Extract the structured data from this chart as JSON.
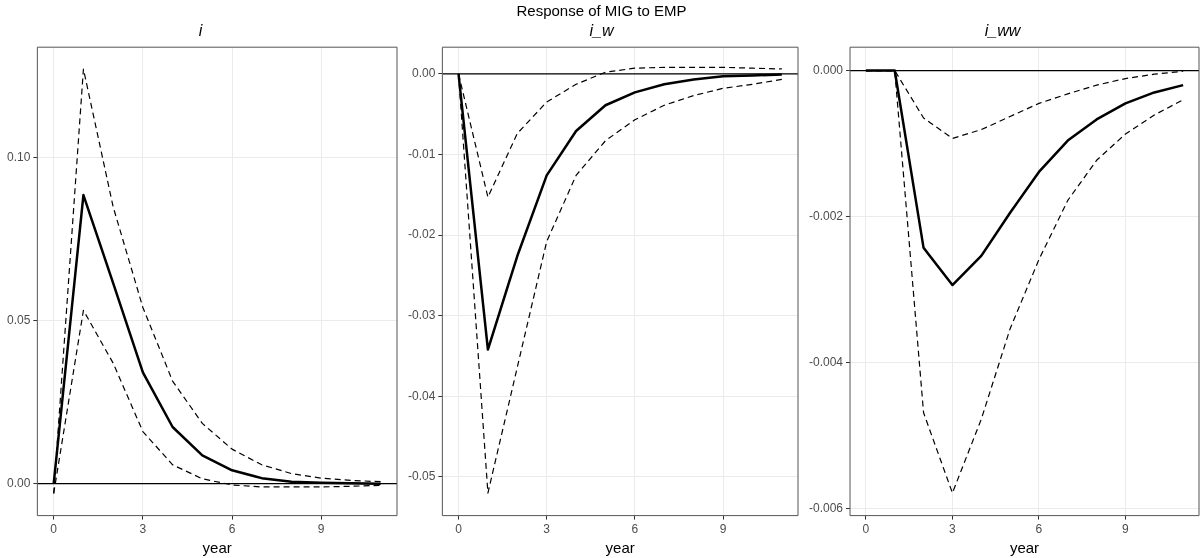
{
  "chart_data": [
    {
      "type": "line",
      "title": "i",
      "xlabel": "year",
      "annotations": [
        "Response of MIG to EMP"
      ],
      "x": [
        0,
        1,
        2,
        3,
        4,
        5,
        6,
        7,
        8,
        9,
        10,
        11
      ],
      "xlim": [
        -0.55,
        11.55
      ],
      "xticks": [
        0,
        3,
        6,
        9
      ],
      "ylim": [
        -0.0098,
        0.134
      ],
      "yticks": [
        {
          "value": 0,
          "label": "0.00"
        },
        {
          "value": 0.05,
          "label": "0.05"
        },
        {
          "value": 0.1,
          "label": "0.10"
        }
      ],
      "grid": true,
      "legend": false,
      "marker": "none",
      "ref_lines": [
        {
          "axis": "y",
          "value": 0,
          "color": "#000000"
        }
      ],
      "series": [
        {
          "color": "#000000",
          "line_style": "solid",
          "values": [
            0,
            0.0886,
            0.0616,
            0.0342,
            0.0174,
            0.0087,
            0.0041,
            0.0017,
            0.0006,
            0.0003,
            0.0001,
            0
          ]
        },
        {
          "color": "#000000",
          "line_style": "dashed",
          "values": [
            -0.003,
            0.1273,
            0.085,
            0.0541,
            0.0315,
            0.0185,
            0.0106,
            0.0058,
            0.0031,
            0.0017,
            0.001,
            0.0006
          ]
        },
        {
          "color": "#000000",
          "line_style": "dashed",
          "values": [
            -0.003,
            0.0532,
            0.037,
            0.016,
            0.0058,
            0.0015,
            -0.0004,
            -0.001,
            -0.001,
            -0.001,
            -0.0008,
            -0.0005
          ]
        }
      ]
    },
    {
      "type": "line",
      "title": "i_w",
      "xlabel": "year",
      "x": [
        0,
        1,
        2,
        3,
        4,
        5,
        6,
        7,
        8,
        9,
        10,
        11
      ],
      "xlim": [
        -0.55,
        11.55
      ],
      "xticks": [
        0,
        3,
        6,
        9
      ],
      "ylim": [
        -0.0548,
        0.0033
      ],
      "yticks": [
        {
          "value": -0.05,
          "label": "-0.05"
        },
        {
          "value": -0.04,
          "label": "-0.04"
        },
        {
          "value": -0.03,
          "label": "-0.03"
        },
        {
          "value": -0.02,
          "label": "-0.02"
        },
        {
          "value": -0.01,
          "label": "-0.01"
        },
        {
          "value": 0,
          "label": "0.00"
        }
      ],
      "grid": true,
      "legend": false,
      "marker": "none",
      "ref_lines": [
        {
          "axis": "y",
          "value": 0,
          "color": "#000000"
        }
      ],
      "series": [
        {
          "color": "#000000",
          "line_style": "solid",
          "values": [
            0,
            -0.0342,
            -0.0226,
            -0.0126,
            -0.0071,
            -0.0039,
            -0.0023,
            -0.0013,
            -0.0007,
            -0.0003,
            -0.0002,
            -0.0001
          ]
        },
        {
          "color": "#000000",
          "line_style": "dashed",
          "values": [
            0,
            -0.0153,
            -0.0074,
            -0.0035,
            -0.0013,
            0.0002,
            0.0007,
            0.0008,
            0.0008,
            0.0008,
            0.0007,
            0.0006
          ]
        },
        {
          "color": "#000000",
          "line_style": "dashed",
          "values": [
            0,
            -0.052,
            -0.0364,
            -0.0208,
            -0.0126,
            -0.0083,
            -0.0057,
            -0.0039,
            -0.0027,
            -0.0018,
            -0.0013,
            -0.0007
          ]
        }
      ]
    },
    {
      "type": "line",
      "title": "i_ww",
      "xlabel": "year",
      "x": [
        0,
        1,
        2,
        3,
        4,
        5,
        6,
        7,
        8,
        9,
        10,
        11
      ],
      "xlim": [
        -0.55,
        11.55
      ],
      "xticks": [
        0,
        3,
        6,
        9
      ],
      "ylim": [
        -0.0061,
        0.00032
      ],
      "yticks": [
        {
          "value": -0.006,
          "label": "-0.006"
        },
        {
          "value": -0.004,
          "label": "-0.004"
        },
        {
          "value": -0.002,
          "label": "-0.002"
        },
        {
          "value": 0,
          "label": "0.000"
        }
      ],
      "grid": true,
      "legend": false,
      "marker": "none",
      "ref_lines": [
        {
          "axis": "y",
          "value": 0,
          "color": "#000000"
        }
      ],
      "series": [
        {
          "color": "#000000",
          "line_style": "solid",
          "values": [
            0,
            0,
            -0.00243,
            -0.00294,
            -0.00254,
            -0.00195,
            -0.00139,
            -0.00096,
            -0.00067,
            -0.00045,
            -0.0003,
            -0.0002
          ]
        },
        {
          "color": "#000000",
          "line_style": "dashed",
          "values": [
            0,
            0,
            -0.00065,
            -0.00093,
            -0.00081,
            -0.00063,
            -0.00045,
            -0.00032,
            -0.0002,
            -0.00011,
            -5e-05,
            -1e-05
          ]
        },
        {
          "color": "#000000",
          "line_style": "dashed",
          "values": [
            0,
            0,
            -0.00469,
            -0.00579,
            -0.00478,
            -0.00354,
            -0.00259,
            -0.00178,
            -0.00123,
            -0.00087,
            -0.00061,
            -0.0004
          ]
        }
      ]
    }
  ]
}
